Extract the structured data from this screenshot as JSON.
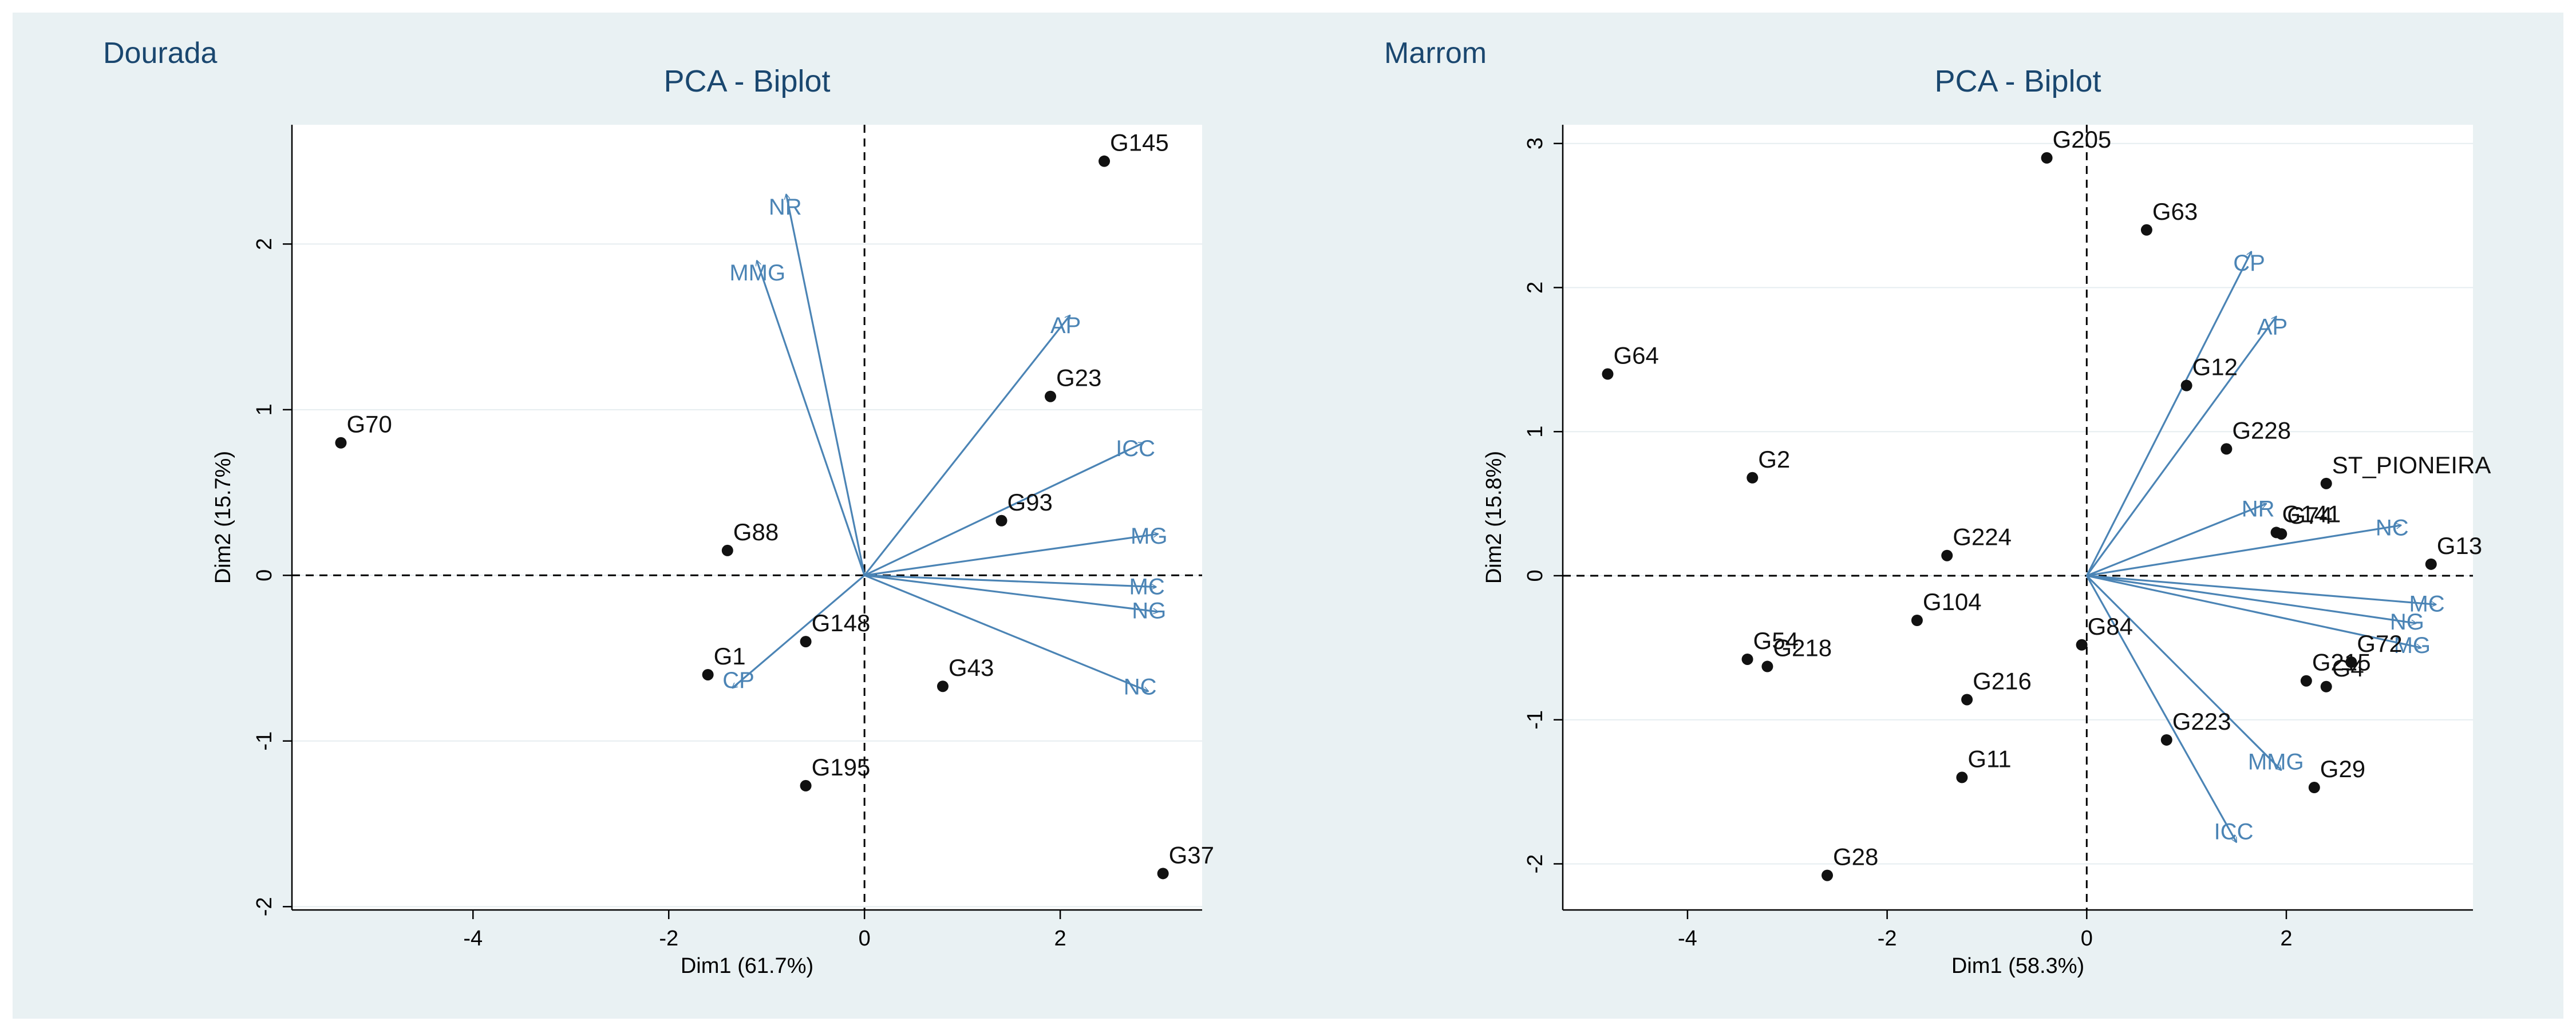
{
  "colors": {
    "background": "#e9f1f3",
    "plot_background": "#ffffff",
    "arrow": "#4b84b5",
    "point": "#111111",
    "grid": "#e6edf0",
    "title": "#1a476f"
  },
  "chart_data": [
    {
      "type": "scatter",
      "panel_label": "Dourada",
      "title": "PCA - Biplot",
      "xlabel": "Dim1 (61.7%)",
      "ylabel": "Dim2 (15.7%)",
      "xlim": [
        -5.85,
        3.45
      ],
      "ylim": [
        -2.02,
        2.72
      ],
      "xticks": [
        -4,
        -2,
        0,
        2
      ],
      "yticks": [
        -2,
        -1,
        0,
        1,
        2
      ],
      "grid": true,
      "reference_lines": {
        "x": 0,
        "y": 0
      },
      "points": [
        {
          "label": "G145",
          "x": 2.45,
          "y": 2.5
        },
        {
          "label": "G23",
          "x": 1.9,
          "y": 1.08
        },
        {
          "label": "G70",
          "x": -5.35,
          "y": 0.8
        },
        {
          "label": "G93",
          "x": 1.4,
          "y": 0.33
        },
        {
          "label": "G88",
          "x": -1.4,
          "y": 0.15
        },
        {
          "label": "G148",
          "x": -0.6,
          "y": -0.4
        },
        {
          "label": "G43",
          "x": 0.8,
          "y": -0.67
        },
        {
          "label": "G1",
          "x": -1.6,
          "y": -0.6
        },
        {
          "label": "G195",
          "x": -0.6,
          "y": -1.27
        },
        {
          "label": "G37",
          "x": 3.05,
          "y": -1.8
        }
      ],
      "vectors": [
        {
          "label": "NR",
          "x": -0.8,
          "y": 2.3
        },
        {
          "label": "MMG",
          "x": -1.1,
          "y": 1.9
        },
        {
          "label": "AP",
          "x": 2.1,
          "y": 1.57
        },
        {
          "label": "ICC",
          "x": 2.85,
          "y": 0.8
        },
        {
          "label": "MG",
          "x": 3.0,
          "y": 0.25
        },
        {
          "label": "MC",
          "x": 2.98,
          "y": -0.07
        },
        {
          "label": "NG",
          "x": 3.0,
          "y": -0.22
        },
        {
          "label": "NC",
          "x": 2.9,
          "y": -0.7
        },
        {
          "label": "CP",
          "x": -1.35,
          "y": -0.68
        }
      ]
    },
    {
      "type": "scatter",
      "panel_label": "Marrom",
      "title": "PCA - Biplot",
      "xlabel": "Dim1 (58.3%)",
      "ylabel": "Dim2 (15.8%)",
      "xlim": [
        -5.25,
        3.87
      ],
      "ylim": [
        -2.32,
        3.13
      ],
      "xticks": [
        -4,
        -2,
        0,
        2
      ],
      "yticks": [
        -2,
        -1,
        0,
        1,
        2,
        3
      ],
      "grid": true,
      "reference_lines": {
        "x": 0,
        "y": 0
      },
      "points": [
        {
          "label": "G205",
          "x": -0.4,
          "y": 2.9
        },
        {
          "label": "G63",
          "x": 0.6,
          "y": 2.4
        },
        {
          "label": "G64",
          "x": -4.8,
          "y": 1.4
        },
        {
          "label": "G12",
          "x": 1.0,
          "y": 1.32
        },
        {
          "label": "G228",
          "x": 1.4,
          "y": 0.88
        },
        {
          "label": "ST_PIONEIRA",
          "x": 2.4,
          "y": 0.64
        },
        {
          "label": "G2",
          "x": -3.35,
          "y": 0.68
        },
        {
          "label": "G141",
          "x": 1.9,
          "y": 0.3
        },
        {
          "label": "G74",
          "x": 1.95,
          "y": 0.29
        },
        {
          "label": "G13",
          "x": 3.45,
          "y": 0.08
        },
        {
          "label": "G224",
          "x": -1.4,
          "y": 0.14
        },
        {
          "label": "G104",
          "x": -1.7,
          "y": -0.31
        },
        {
          "label": "G84",
          "x": -0.05,
          "y": -0.48
        },
        {
          "label": "G54",
          "x": -3.4,
          "y": -0.58
        },
        {
          "label": "G218",
          "x": -3.2,
          "y": -0.63
        },
        {
          "label": "G72",
          "x": 2.65,
          "y": -0.6
        },
        {
          "label": "G215",
          "x": 2.2,
          "y": -0.73
        },
        {
          "label": "G4",
          "x": 2.4,
          "y": -0.77
        },
        {
          "label": "G216",
          "x": -1.2,
          "y": -0.86
        },
        {
          "label": "G223",
          "x": 0.8,
          "y": -1.14
        },
        {
          "label": "G11",
          "x": -1.25,
          "y": -1.4
        },
        {
          "label": "G29",
          "x": 2.28,
          "y": -1.47
        },
        {
          "label": "G28",
          "x": -2.6,
          "y": -2.08
        }
      ],
      "vectors": [
        {
          "label": "CP",
          "x": 1.65,
          "y": 2.25
        },
        {
          "label": "AP",
          "x": 1.9,
          "y": 1.8
        },
        {
          "label": "NR",
          "x": 1.8,
          "y": 0.5
        },
        {
          "label": "NC",
          "x": 3.15,
          "y": 0.35
        },
        {
          "label": "MC",
          "x": 3.5,
          "y": -0.2
        },
        {
          "label": "NG",
          "x": 3.3,
          "y": -0.33
        },
        {
          "label": "MG",
          "x": 3.35,
          "y": -0.5
        },
        {
          "label": "MMG",
          "x": 1.95,
          "y": -1.35
        },
        {
          "label": "ICC",
          "x": 1.5,
          "y": -1.85
        }
      ]
    }
  ]
}
